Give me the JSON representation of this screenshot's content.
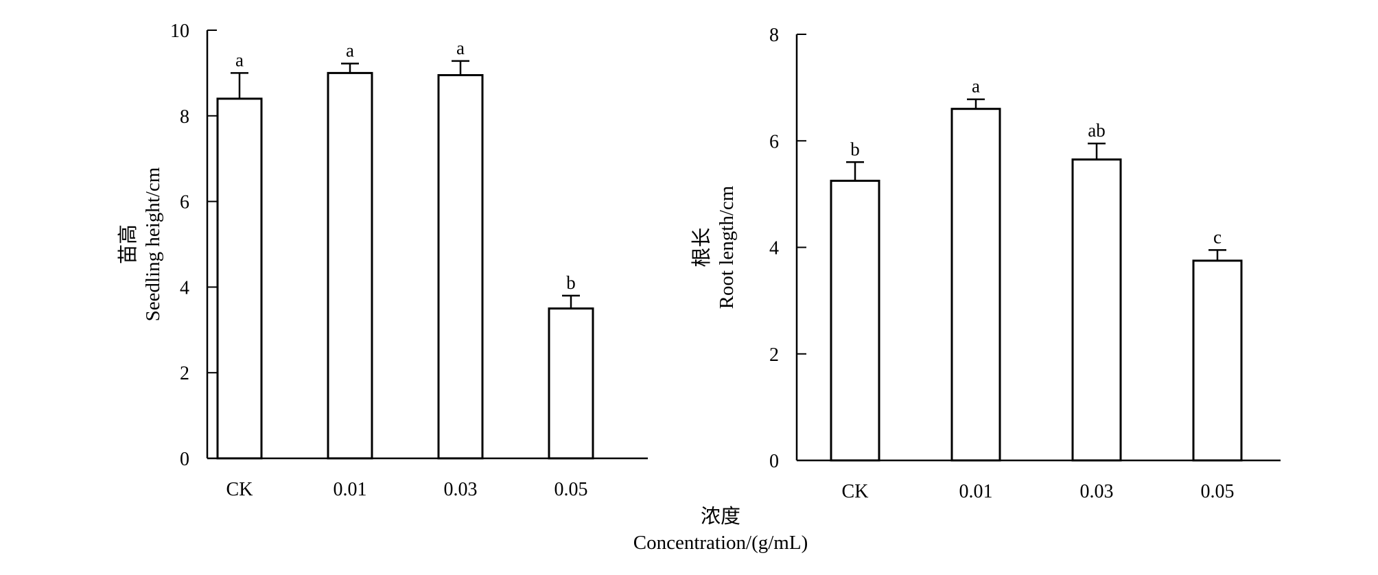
{
  "shared_xlabel": {
    "zh": "浓度",
    "en": "Concentration/(g/mL)"
  },
  "chart_data": [
    {
      "type": "bar",
      "title": "",
      "categories": [
        "CK",
        "0.01",
        "0.03",
        "0.05"
      ],
      "series": [
        {
          "values": [
            8.4,
            9.0,
            8.95,
            3.5
          ],
          "errors": [
            0.6,
            0.22,
            0.33,
            0.3
          ],
          "significance": [
            "a",
            "a",
            "a",
            "b"
          ]
        }
      ],
      "ylabel_zh": "苗高",
      "ylabel_en": "Seedling height/cm",
      "ylim": [
        0,
        10
      ],
      "yticks": [
        0,
        2,
        4,
        6,
        8,
        10
      ],
      "grid": false,
      "bar_fill": "#ffffff",
      "bar_stroke": "#000000"
    },
    {
      "type": "bar",
      "title": "",
      "categories": [
        "CK",
        "0.01",
        "0.03",
        "0.05"
      ],
      "series": [
        {
          "values": [
            5.25,
            6.6,
            5.65,
            3.75
          ],
          "errors": [
            0.35,
            0.18,
            0.3,
            0.2
          ],
          "significance": [
            "b",
            "a",
            "ab",
            "c"
          ]
        }
      ],
      "ylabel_zh": "根长",
      "ylabel_en": "Root length/cm",
      "ylim": [
        0,
        8
      ],
      "yticks": [
        0,
        2,
        4,
        6,
        8
      ],
      "grid": false,
      "bar_fill": "#ffffff",
      "bar_stroke": "#000000"
    }
  ]
}
